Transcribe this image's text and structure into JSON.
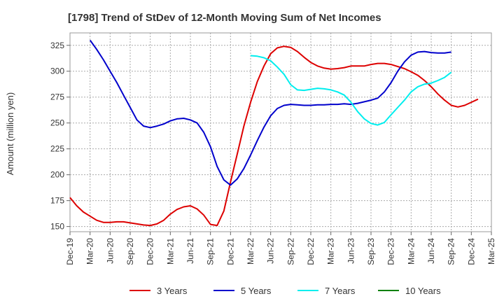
{
  "chart_data": {
    "type": "line",
    "title": "[1798]  Trend of StDev of 12-Month Moving Sum of Net Incomes",
    "ylabel": "Amount (million yen)",
    "xlabel": "",
    "ylim": [
      145,
      337
    ],
    "yticks": [
      150,
      175,
      200,
      225,
      250,
      275,
      300,
      325
    ],
    "x_tick_labels": [
      "Dec-19",
      "Mar-20",
      "Jun-20",
      "Sep-20",
      "Dec-20",
      "Mar-21",
      "Jun-21",
      "Sep-21",
      "Dec-21",
      "Mar-22",
      "Jun-22",
      "Sep-22",
      "Dec-22",
      "Mar-23",
      "Jun-23",
      "Sep-23",
      "Dec-23",
      "Mar-24",
      "Jun-24",
      "Sep-24",
      "Dec-24",
      "Mar-25"
    ],
    "x_months_start": "Dec-19",
    "grid": true,
    "legend_position": "bottom",
    "series": [
      {
        "name": "3 Years",
        "color": "#dd0000",
        "start_month": 0,
        "values": [
          178,
          170,
          164,
          160,
          156,
          154,
          154,
          154.5,
          154.5,
          153.5,
          152.5,
          151.5,
          151,
          152.5,
          156,
          162,
          166.5,
          169,
          170,
          167,
          161,
          152,
          151,
          165,
          193,
          220,
          247,
          270,
          290,
          305,
          317,
          322.5,
          324,
          323,
          319,
          313.5,
          308.5,
          305,
          303,
          302,
          302.5,
          303.5,
          305,
          305,
          305,
          306.5,
          307.5,
          307.5,
          306.5,
          304.5,
          302.5,
          299.5,
          296,
          291,
          285,
          278,
          272,
          267,
          265.5,
          267,
          270,
          273
        ]
      },
      {
        "name": "5 Years",
        "color": "#0000cc",
        "start_month": 3,
        "values": [
          330,
          321,
          311,
          300,
          289,
          277,
          265,
          253,
          247,
          245.5,
          247,
          249,
          252,
          254,
          254.5,
          253,
          250,
          241,
          227,
          208,
          195,
          190,
          196,
          206,
          219,
          233,
          246,
          257,
          264,
          267,
          268,
          267.5,
          267,
          267,
          267.5,
          267.5,
          268,
          268,
          268.5,
          268,
          269,
          270.5,
          272,
          274,
          280,
          289,
          300,
          309,
          315.5,
          318.5,
          319,
          318,
          317.5,
          317.5,
          318.5
        ]
      },
      {
        "name": "7 Years",
        "color": "#00eeee",
        "start_month": 27,
        "values": [
          315,
          314.5,
          313,
          310,
          304,
          297,
          287,
          282,
          281.5,
          282.5,
          283.5,
          283,
          282,
          280,
          277,
          270,
          261,
          254,
          249.5,
          248,
          250.5,
          258,
          265,
          272,
          280,
          285,
          287.5,
          288.5,
          291,
          294,
          299
        ]
      },
      {
        "name": "10 Years",
        "color": "#008000",
        "start_month": 0,
        "values": []
      }
    ]
  }
}
